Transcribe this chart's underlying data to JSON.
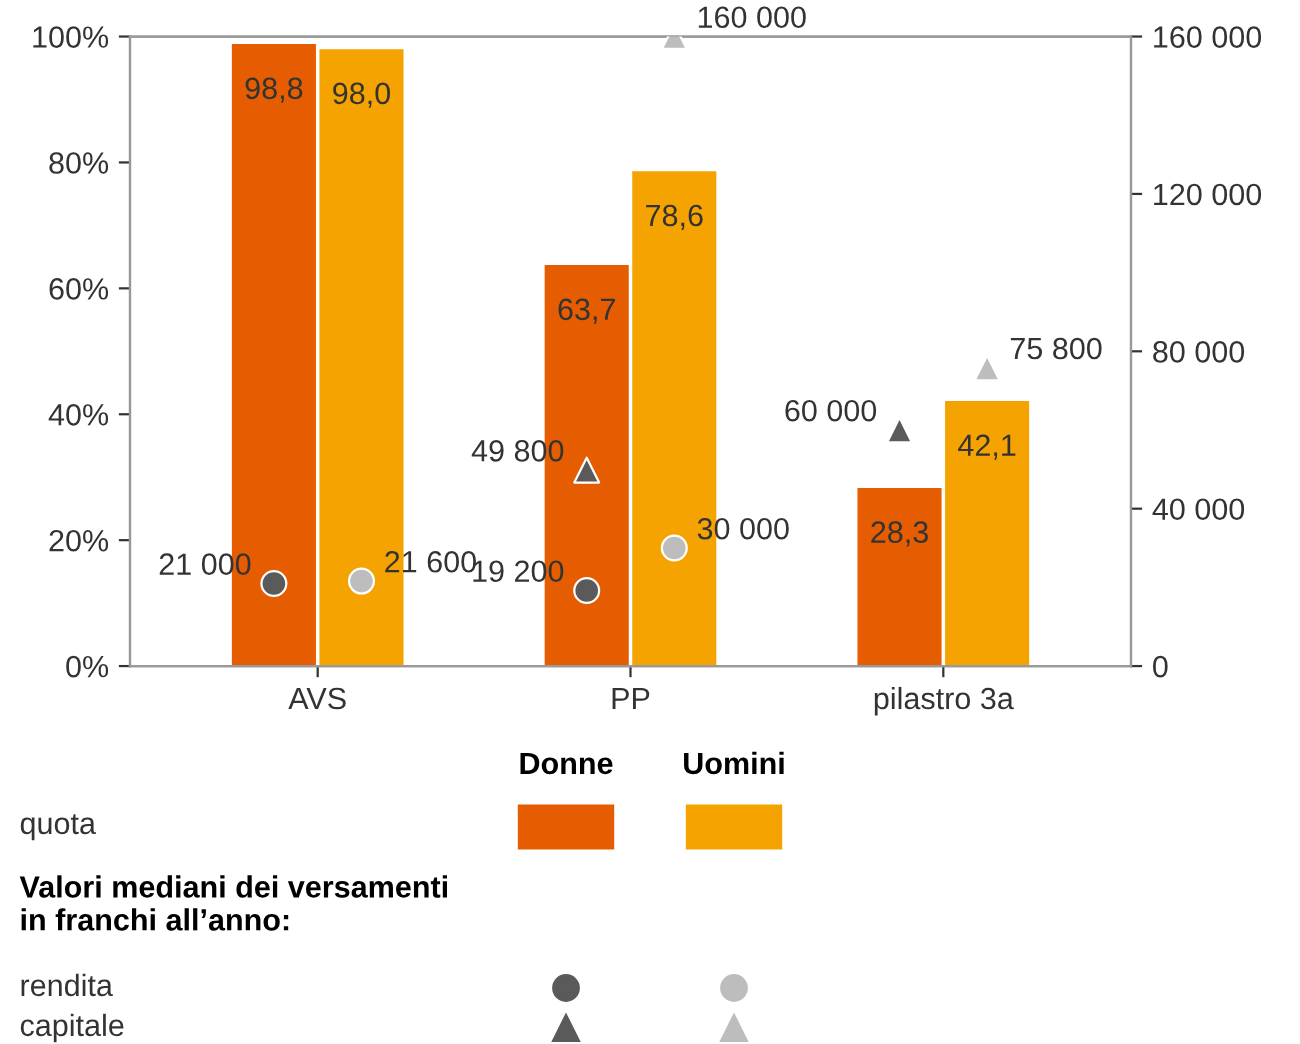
{
  "chart_data": {
    "type": "bar",
    "categories": [
      "AVS",
      "PP",
      "pilastro 3a"
    ],
    "series": [
      {
        "name": "Donne",
        "type": "bar",
        "color": "#e65c00",
        "values": [
          98.8,
          63.7,
          28.3
        ],
        "value_labels": [
          "98,8",
          "63,7",
          "28,3"
        ]
      },
      {
        "name": "Uomini",
        "type": "bar",
        "color": "#f5a300",
        "values": [
          98.0,
          78.6,
          42.1
        ],
        "value_labels": [
          "98,0",
          "78,6",
          "42,1"
        ]
      },
      {
        "type": "scatter",
        "axis": "y2",
        "marker": "circle",
        "color": "#5a5a5a",
        "x": [
          "AVS",
          "PP",
          "pilastro 3a"
        ],
        "values": [
          21000,
          19200,
          null
        ],
        "value_labels": [
          "21 000",
          "19 200",
          null
        ]
      },
      {
        "type": "scatter",
        "axis": "y2",
        "marker": "circle",
        "color": "#bdbdbd",
        "x": [
          "AVS",
          "PP",
          "pilastro 3a"
        ],
        "values": [
          21600,
          30000,
          null
        ],
        "value_labels": [
          "21 600",
          "30 000",
          null
        ]
      },
      {
        "type": "scatter",
        "axis": "y2",
        "marker": "triangle",
        "color": "#5a5a5a",
        "x": [
          "AVS",
          "PP",
          "pilastro 3a"
        ],
        "values": [
          null,
          49800,
          60000
        ],
        "value_labels": [
          null,
          "49 800",
          "60 000"
        ]
      },
      {
        "type": "scatter",
        "axis": "y2",
        "marker": "triangle",
        "color": "#bdbdbd",
        "x": [
          "AVS",
          "PP",
          "pilastro 3a"
        ],
        "values": [
          null,
          160000,
          75800
        ],
        "value_labels": [
          null,
          "160 000",
          "75 800"
        ]
      }
    ],
    "ylim": [
      0,
      100
    ],
    "yticks": [
      {
        "value": 0,
        "label": "0%"
      },
      {
        "value": 20,
        "label": "20%"
      },
      {
        "value": 40,
        "label": "40%"
      },
      {
        "value": 60,
        "label": "60%"
      },
      {
        "value": 80,
        "label": "80%"
      },
      {
        "value": 100,
        "label": "100%"
      }
    ],
    "y2lim": [
      0,
      160000
    ],
    "y2ticks": [
      {
        "value": 0,
        "label": "0"
      },
      {
        "value": 40000,
        "label": "40 000"
      },
      {
        "value": 80000,
        "label": "80 000"
      },
      {
        "value": 120000,
        "label": "120 000"
      },
      {
        "value": 160000,
        "label": "160 000"
      }
    ],
    "legend": "bottom",
    "legend_title": "Valori mediani dei versamenti\nin franchi all’anno:",
    "annotations": [
      "quota",
      "rendita",
      "capitale"
    ],
    "grid": false
  }
}
